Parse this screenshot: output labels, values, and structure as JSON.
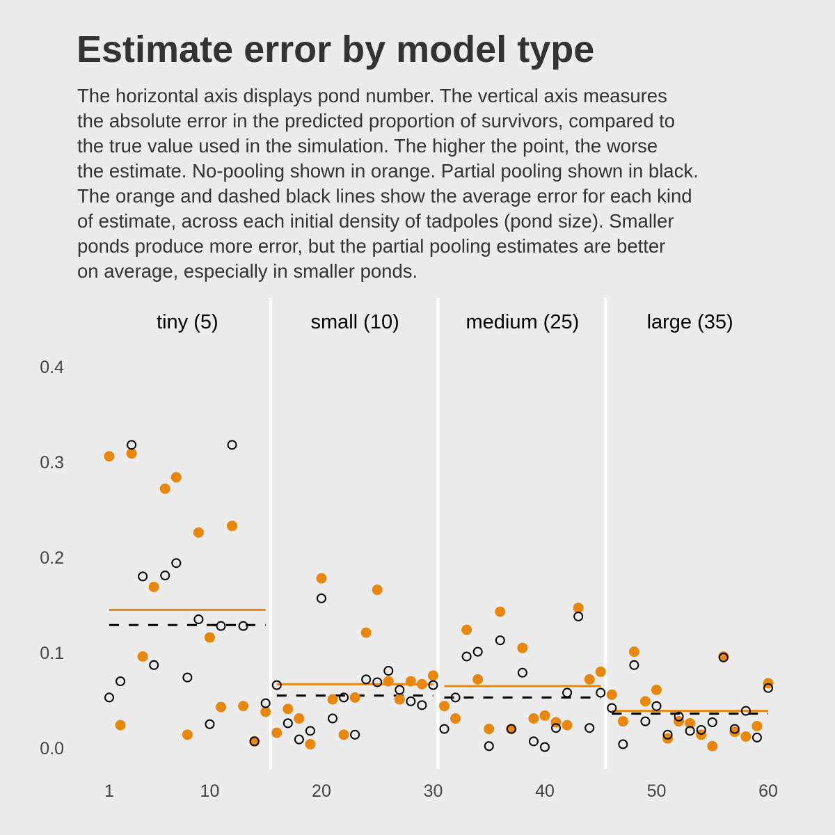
{
  "chart_data": {
    "type": "scatter",
    "title": "Estimate error by model type",
    "subtitle": "The horizontal axis displays pond number. The vertical axis measures\nthe absolute error in the predicted proportion of survivors, compared to\nthe true value used in the simulation. The higher the point, the worse\nthe estimate. No-pooling shown in orange. Partial pooling shown in black.\nThe orange and dashed black lines show the average error for each kind\nof estimate, across each initial density of tadpoles (pond size). Smaller\nponds produce more error, but the partial pooling estimates are better\non average, especially in smaller ponds.",
    "xlabel": "",
    "ylabel": "",
    "xlim": [
      1,
      60
    ],
    "ylim": [
      0,
      0.4
    ],
    "x_ticks": [
      1,
      10,
      20,
      30,
      40,
      50,
      60
    ],
    "y_ticks": [
      "0.0",
      "0.1",
      "0.2",
      "0.3",
      "0.4"
    ],
    "colors": {
      "no_pooling": "#e8870e",
      "partial_pooling": "#000000",
      "background": "#ececec"
    },
    "facets": [
      {
        "label": "tiny (5)",
        "ponds": [
          1,
          15
        ],
        "mean_no_pooling": 0.145,
        "mean_partial_pooling": 0.129
      },
      {
        "label": "small (10)",
        "ponds": [
          16,
          30
        ],
        "mean_no_pooling": 0.067,
        "mean_partial_pooling": 0.055
      },
      {
        "label": "medium (25)",
        "ponds": [
          31,
          45
        ],
        "mean_no_pooling": 0.065,
        "mean_partial_pooling": 0.053
      },
      {
        "label": "large (35)",
        "ponds": [
          46,
          60
        ],
        "mean_no_pooling": 0.039,
        "mean_partial_pooling": 0.036
      }
    ],
    "series": [
      {
        "name": "No-pooling",
        "style": "filled-orange",
        "values": [
          0.306,
          0.024,
          0.309,
          0.096,
          0.169,
          0.272,
          0.284,
          0.014,
          0.226,
          0.116,
          0.043,
          0.233,
          0.044,
          0.007,
          0.038,
          0.016,
          0.041,
          0.031,
          0.004,
          0.178,
          0.051,
          0.014,
          0.053,
          0.121,
          0.166,
          0.07,
          0.051,
          0.07,
          0.067,
          0.076,
          0.044,
          0.031,
          0.124,
          0.072,
          0.02,
          0.143,
          0.02,
          0.105,
          0.031,
          0.034,
          0.027,
          0.024,
          0.147,
          0.072,
          0.08,
          0.056,
          0.028,
          0.101,
          0.049,
          0.061,
          0.01,
          0.028,
          0.026,
          0.014,
          0.002,
          0.096,
          0.017,
          0.012,
          0.023,
          0.068
        ]
      },
      {
        "name": "Partial pooling",
        "style": "open-black",
        "values": [
          0.053,
          0.07,
          0.318,
          0.18,
          0.087,
          0.181,
          0.194,
          0.074,
          0.135,
          0.025,
          0.128,
          0.318,
          0.128,
          0.007,
          0.047,
          0.066,
          0.026,
          0.009,
          0.018,
          0.157,
          0.031,
          0.053,
          0.014,
          0.072,
          0.069,
          0.081,
          0.061,
          0.049,
          0.045,
          0.066,
          0.02,
          0.053,
          0.096,
          0.101,
          0.002,
          0.113,
          0.02,
          0.079,
          0.007,
          0.001,
          0.021,
          0.058,
          0.138,
          0.021,
          0.058,
          0.042,
          0.004,
          0.087,
          0.028,
          0.044,
          0.014,
          0.033,
          0.018,
          0.019,
          0.027,
          0.095,
          0.02,
          0.039,
          0.011,
          0.063
        ]
      }
    ]
  }
}
